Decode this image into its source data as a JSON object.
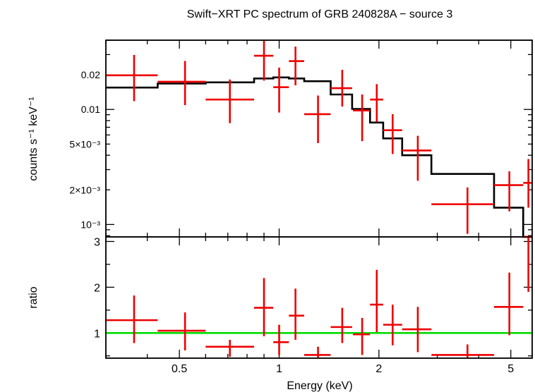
{
  "chart_data": [
    {
      "type": "scatter",
      "title": "Swift−XRT PC spectrum of GRB 240828A − source 3",
      "xlabel": "Energy (keV)",
      "ylabel": "counts s⁻¹ keV⁻¹",
      "xscale": "log",
      "yscale": "log",
      "xlim": [
        0.3,
        5.8
      ],
      "ylim": [
        0.00078,
        0.04
      ],
      "yticks": [
        {
          "value": 0.02,
          "label": "0.02"
        },
        {
          "value": 0.01,
          "label": "0.01"
        },
        {
          "value": 0.005,
          "label": "5×10⁻³"
        },
        {
          "value": 0.002,
          "label": "2×10⁻³"
        },
        {
          "value": 0.001,
          "label": "10⁻³"
        }
      ],
      "series": [
        {
          "color": "#ee0000",
          "points": [
            {
              "x": 0.365,
              "xlo": 0.3,
              "xhi": 0.43,
              "y": 0.0198,
              "ylo": 0.0118,
              "yhi": 0.0298
            },
            {
              "x": 0.52,
              "xlo": 0.43,
              "xhi": 0.6,
              "y": 0.0174,
              "ylo": 0.0109,
              "yhi": 0.0264
            },
            {
              "x": 0.71,
              "xlo": 0.6,
              "xhi": 0.84,
              "y": 0.0122,
              "ylo": 0.0076,
              "yhi": 0.0182
            },
            {
              "x": 0.9,
              "xlo": 0.84,
              "xhi": 0.96,
              "y": 0.0293,
              "ylo": 0.0178,
              "yhi": 0.0418
            },
            {
              "x": 1.0,
              "xlo": 0.96,
              "xhi": 1.07,
              "y": 0.0156,
              "ylo": 0.0094,
              "yhi": 0.0231
            },
            {
              "x": 1.12,
              "xlo": 1.07,
              "xhi": 1.19,
              "y": 0.0263,
              "ylo": 0.0162,
              "yhi": 0.0352
            },
            {
              "x": 1.31,
              "xlo": 1.19,
              "xhi": 1.43,
              "y": 0.0091,
              "ylo": 0.0051,
              "yhi": 0.0132
            },
            {
              "x": 1.55,
              "xlo": 1.43,
              "xhi": 1.66,
              "y": 0.0153,
              "ylo": 0.0106,
              "yhi": 0.0221
            },
            {
              "x": 1.78,
              "xlo": 1.67,
              "xhi": 1.88,
              "y": 0.0098,
              "ylo": 0.0053,
              "yhi": 0.0135
            },
            {
              "x": 1.97,
              "xlo": 1.88,
              "xhi": 2.06,
              "y": 0.0122,
              "ylo": 0.0078,
              "yhi": 0.0166
            },
            {
              "x": 2.2,
              "xlo": 2.06,
              "xhi": 2.35,
              "y": 0.0066,
              "ylo": 0.0041,
              "yhi": 0.0091
            },
            {
              "x": 2.62,
              "xlo": 2.35,
              "xhi": 2.88,
              "y": 0.0044,
              "ylo": 0.0024,
              "yhi": 0.0059
            },
            {
              "x": 3.7,
              "xlo": 2.88,
              "xhi": 4.45,
              "y": 0.0015,
              "ylo": 0.00083,
              "yhi": 0.0021
            },
            {
              "x": 4.95,
              "xlo": 4.45,
              "xhi": 5.45,
              "y": 0.0022,
              "ylo": 0.0013,
              "yhi": 0.0029
            },
            {
              "x": 5.65,
              "xlo": 5.45,
              "xhi": 5.8,
              "y": 0.0023,
              "ylo": 0.0014,
              "yhi": 0.0037
            }
          ]
        },
        {
          "type": "step",
          "color": "#000000",
          "steps": [
            {
              "x0": 0.3,
              "x1": 0.43,
              "y": 0.0155
            },
            {
              "x0": 0.43,
              "x1": 0.6,
              "y": 0.0168
            },
            {
              "x0": 0.6,
              "x1": 0.84,
              "y": 0.0172
            },
            {
              "x0": 0.84,
              "x1": 0.96,
              "y": 0.0186
            },
            {
              "x0": 0.96,
              "x1": 1.07,
              "y": 0.019
            },
            {
              "x0": 1.07,
              "x1": 1.19,
              "y": 0.0186
            },
            {
              "x0": 1.19,
              "x1": 1.43,
              "y": 0.0176
            },
            {
              "x0": 1.43,
              "x1": 1.66,
              "y": 0.0135
            },
            {
              "x0": 1.66,
              "x1": 1.88,
              "y": 0.0101
            },
            {
              "x0": 1.88,
              "x1": 2.06,
              "y": 0.0077
            },
            {
              "x0": 2.06,
              "x1": 2.35,
              "y": 0.0056
            },
            {
              "x0": 2.35,
              "x1": 2.88,
              "y": 0.004
            },
            {
              "x0": 2.88,
              "x1": 4.45,
              "y": 0.00275
            },
            {
              "x0": 4.45,
              "x1": 5.45,
              "y": 0.0014
            },
            {
              "x0": 5.45,
              "x1": 5.8,
              "y": 0.00075
            }
          ]
        }
      ]
    },
    {
      "type": "scatter",
      "xlabel": "Energy (keV)",
      "ylabel": "ratio",
      "xscale": "log",
      "xlim": [
        0.3,
        5.8
      ],
      "ylim": [
        0.45,
        3.1
      ],
      "xticks": [
        {
          "value": 0.5,
          "label": "0.5"
        },
        {
          "value": 1,
          "label": "1"
        },
        {
          "value": 2,
          "label": "2"
        },
        {
          "value": 5,
          "label": "5"
        }
      ],
      "yticks": [
        {
          "value": 1,
          "label": "1"
        },
        {
          "value": 2,
          "label": "2"
        },
        {
          "value": 3,
          "label": "3"
        }
      ],
      "reference_line": {
        "y": 1,
        "color": "#00dd00"
      },
      "series": [
        {
          "color": "#ee0000",
          "points": [
            {
              "x": 0.365,
              "xlo": 0.3,
              "xhi": 0.43,
              "y": 1.28,
              "ylo": 0.78,
              "yhi": 1.82
            },
            {
              "x": 0.52,
              "xlo": 0.43,
              "xhi": 0.6,
              "y": 1.05,
              "ylo": 0.62,
              "yhi": 1.45
            },
            {
              "x": 0.71,
              "xlo": 0.6,
              "xhi": 0.84,
              "y": 0.7,
              "ylo": 0.48,
              "yhi": 0.85
            },
            {
              "x": 0.9,
              "xlo": 0.84,
              "xhi": 0.96,
              "y": 1.55,
              "ylo": 0.93,
              "yhi": 2.2
            },
            {
              "x": 1.0,
              "xlo": 0.96,
              "xhi": 1.07,
              "y": 0.8,
              "ylo": 0.52,
              "yhi": 1.18
            },
            {
              "x": 1.12,
              "xlo": 1.07,
              "xhi": 1.19,
              "y": 1.38,
              "ylo": 0.85,
              "yhi": 1.97
            },
            {
              "x": 1.31,
              "xlo": 1.19,
              "xhi": 1.43,
              "y": 0.52,
              "ylo": 0.45,
              "yhi": 0.7
            },
            {
              "x": 1.55,
              "xlo": 1.43,
              "xhi": 1.66,
              "y": 1.13,
              "ylo": 0.78,
              "yhi": 1.55
            },
            {
              "x": 1.78,
              "xlo": 1.67,
              "xhi": 1.88,
              "y": 0.97,
              "ylo": 0.52,
              "yhi": 1.33
            },
            {
              "x": 1.97,
              "xlo": 1.88,
              "xhi": 2.06,
              "y": 1.62,
              "ylo": 1.02,
              "yhi": 2.38
            },
            {
              "x": 2.2,
              "xlo": 2.06,
              "xhi": 2.35,
              "y": 1.18,
              "ylo": 0.73,
              "yhi": 1.62
            },
            {
              "x": 2.62,
              "xlo": 2.35,
              "xhi": 2.88,
              "y": 1.08,
              "ylo": 0.58,
              "yhi": 1.57
            },
            {
              "x": 3.7,
              "xlo": 2.88,
              "xhi": 4.45,
              "y": 0.52,
              "ylo": 0.45,
              "yhi": 0.75
            },
            {
              "x": 4.95,
              "xlo": 4.45,
              "xhi": 5.45,
              "y": 1.57,
              "ylo": 0.95,
              "yhi": 2.32
            },
            {
              "x": 5.65,
              "xlo": 5.45,
              "xhi": 5.8,
              "y": 3.1,
              "ylo": 1.9,
              "yhi": 3.6
            }
          ]
        }
      ]
    }
  ]
}
